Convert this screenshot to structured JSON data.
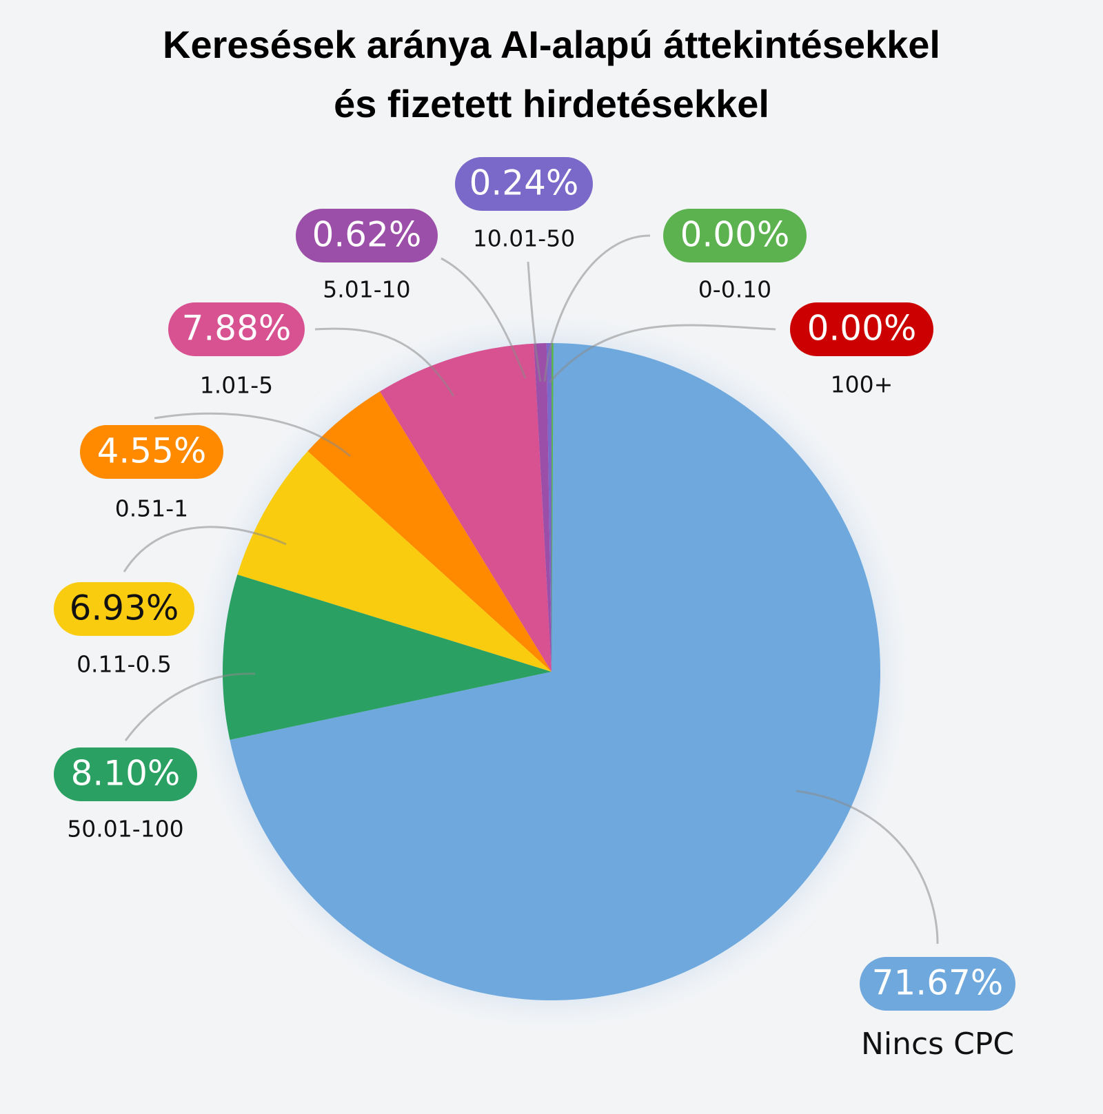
{
  "chart_data": {
    "type": "pie",
    "title": [
      "Keresések aránya AI-alapú áttekintésekkel",
      "és fizetett hirdetésekkel"
    ],
    "start": "12 o'clock",
    "direction": "clockwise",
    "slices": [
      {
        "category": "100+",
        "value": 0.0,
        "label": "0.00%",
        "color": "#cc0000",
        "label_text_color": "#ffffff"
      },
      {
        "category": "Nincs CPC",
        "value": 71.67,
        "label": "71.67%",
        "color": "#6fa8dc",
        "label_text_color": "#ffffff"
      },
      {
        "category": "50.01-100",
        "value": 8.1,
        "label": "8.10%",
        "color": "#2aa062",
        "label_text_color": "#ffffff"
      },
      {
        "category": "0.11-0.5",
        "value": 6.93,
        "label": "6.93%",
        "color": "#f9cc10",
        "label_text_color": "#111111"
      },
      {
        "category": "0.51-1",
        "value": 4.55,
        "label": "4.55%",
        "color": "#ff8a00",
        "label_text_color": "#ffffff"
      },
      {
        "category": "1.01-5",
        "value": 7.88,
        "label": "7.88%",
        "color": "#d85190",
        "label_text_color": "#ffffff"
      },
      {
        "category": "5.01-10",
        "value": 0.62,
        "label": "0.62%",
        "color": "#9b4fa8",
        "label_text_color": "#ffffff"
      },
      {
        "category": "10.01-50",
        "value": 0.24,
        "label": "0.24%",
        "color": "#7a69c8",
        "label_text_color": "#ffffff"
      },
      {
        "category": "0-0.10",
        "value": 0.0,
        "label": "0.00%",
        "color": "#5bb24f",
        "label_text_color": "#ffffff"
      }
    ]
  }
}
